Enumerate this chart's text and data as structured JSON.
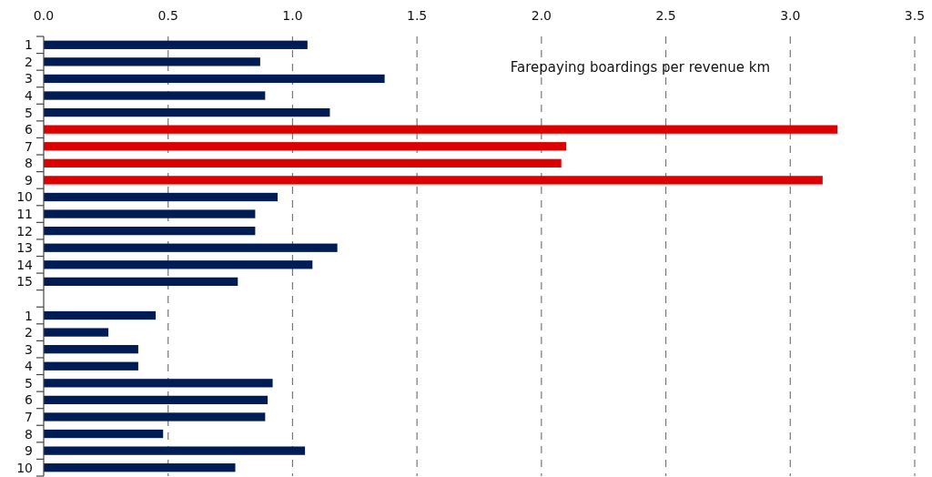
{
  "chart_data": {
    "type": "bar",
    "orientation": "horizontal",
    "title": "Farepaying boardings per revenue km",
    "categories": [
      "1",
      "2",
      "3",
      "4",
      "5",
      "6",
      "7",
      "8",
      "9",
      "10",
      "11",
      "12",
      "13",
      "14",
      "15",
      null,
      "1",
      "2",
      "3",
      "4",
      "5",
      "6",
      "7",
      "8",
      "9",
      "10"
    ],
    "values": [
      1.06,
      0.87,
      1.37,
      0.89,
      1.15,
      3.19,
      2.1,
      2.08,
      3.13,
      0.94,
      0.85,
      0.85,
      1.18,
      1.08,
      0.78,
      null,
      0.45,
      0.26,
      0.38,
      0.38,
      0.92,
      0.9,
      0.89,
      0.48,
      1.05,
      0.77
    ],
    "colors": [
      "#001c54",
      "#001c54",
      "#001c54",
      "#001c54",
      "#001c54",
      "#dd0000",
      "#dd0000",
      "#dd0000",
      "#dd0000",
      "#001c54",
      "#001c54",
      "#001c54",
      "#001c54",
      "#001c54",
      "#001c54",
      null,
      "#001c54",
      "#001c54",
      "#001c54",
      "#001c54",
      "#001c54",
      "#001c54",
      "#001c54",
      "#001c54",
      "#001c54",
      "#001c54"
    ],
    "xlim": [
      0,
      3.5
    ],
    "xticks": [
      {
        "value": 0,
        "label": "0.0"
      },
      0.5,
      {
        "value": 1,
        "label": "1.0"
      },
      1.5,
      {
        "value": 2,
        "label": "2.0"
      },
      2.5,
      {
        "value": 3,
        "label": "3.0"
      },
      3.5
    ],
    "grid": "x"
  }
}
